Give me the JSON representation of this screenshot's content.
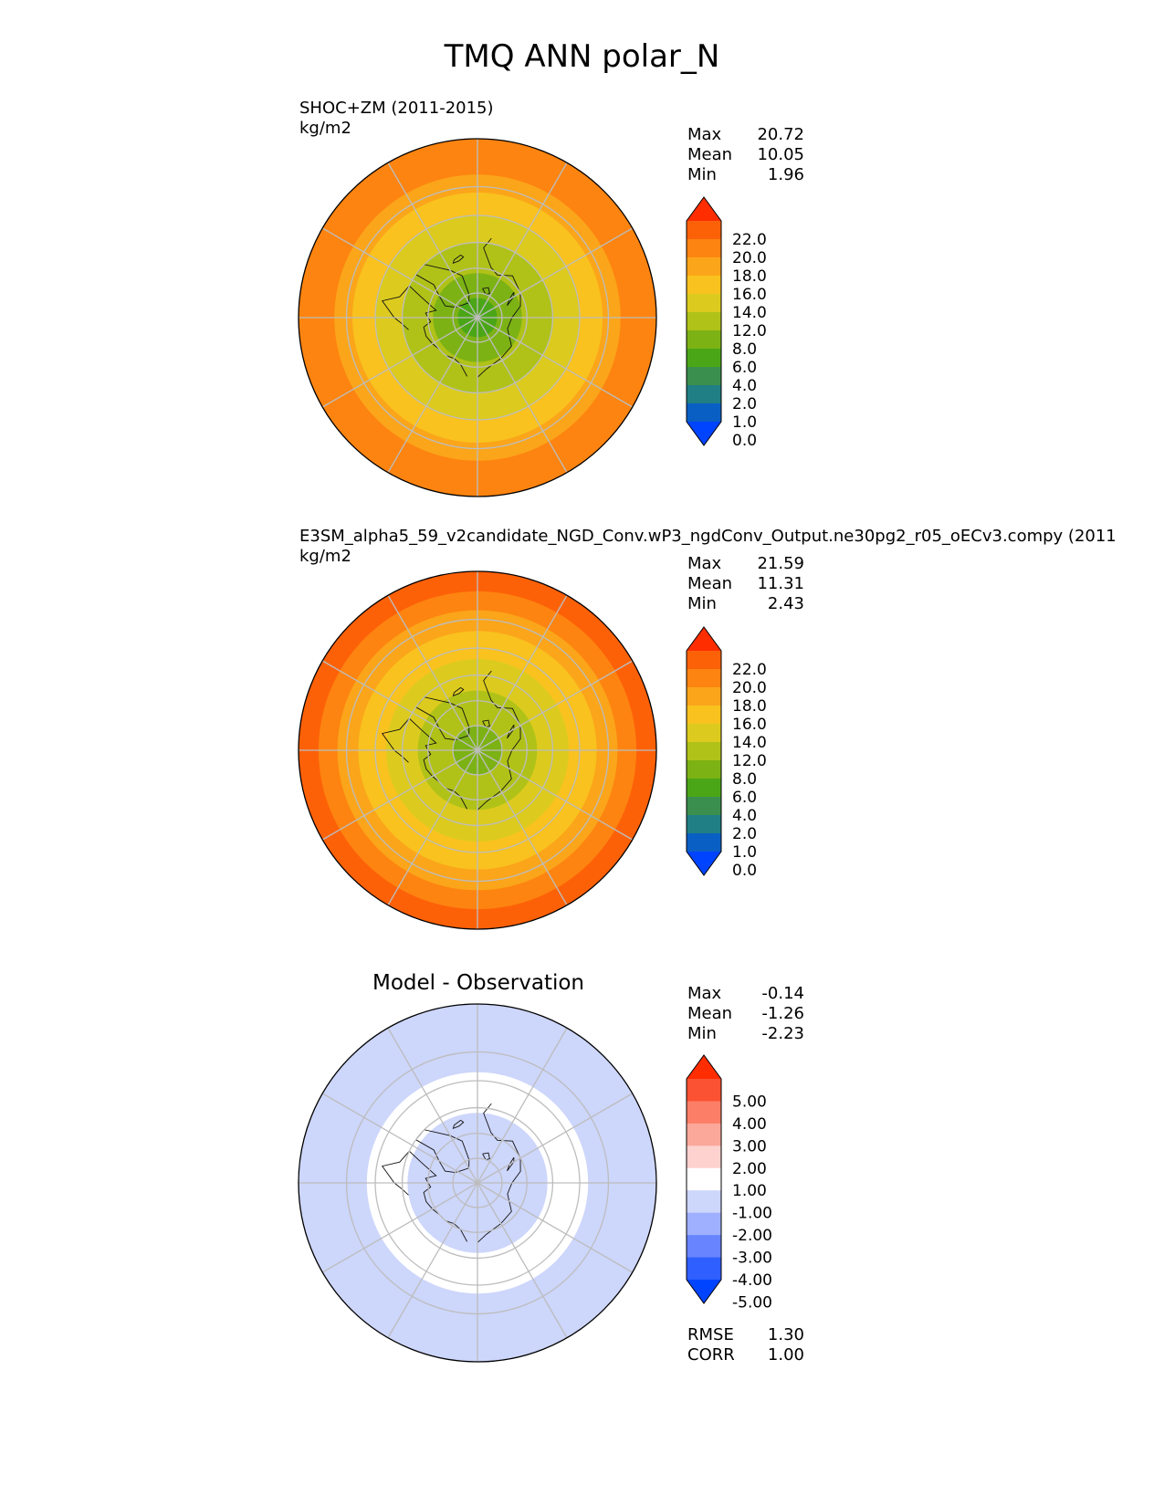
{
  "title": "TMQ ANN polar_N",
  "panels": [
    {
      "id": "test",
      "title": "SHOC+ZM (2011-2015)",
      "units": "kg/m2",
      "stats": [
        {
          "label": "Max",
          "value": "20.72"
        },
        {
          "label": "Mean",
          "value": "10.05"
        },
        {
          "label": "Min",
          "value": "1.96"
        }
      ]
    },
    {
      "id": "reference",
      "title": "E3SM_alpha5_59_v2candidate_NGD_Conv.wP3_ngdConv_Output.ne30pg2_r05_oECv3.compy (2011",
      "units": "kg/m2",
      "stats": [
        {
          "label": "Max",
          "value": "21.59"
        },
        {
          "label": "Mean",
          "value": "11.31"
        },
        {
          "label": "Min",
          "value": "2.43"
        }
      ]
    },
    {
      "id": "difference",
      "title": "Model - Observation",
      "units": "",
      "stats": [
        {
          "label": "Max",
          "value": "-0.14"
        },
        {
          "label": "Mean",
          "value": "-1.26"
        },
        {
          "label": "Min",
          "value": "-2.23"
        }
      ],
      "metrics": [
        {
          "label": "RMSE",
          "value": "1.30"
        },
        {
          "label": "CORR",
          "value": "1.00"
        }
      ]
    }
  ],
  "chart_data": [
    {
      "type": "heatmap",
      "projection": "north polar stereographic",
      "title": "SHOC+ZM (2011-2015)",
      "units": "kg/m2",
      "stats": {
        "max": 20.72,
        "mean": 10.05,
        "min": 1.96
      },
      "colorbar": {
        "tick_labels": [
          "22.0",
          "20.0",
          "18.0",
          "16.0",
          "14.0",
          "12.0",
          "8.0",
          "6.0",
          "4.0",
          "2.0",
          "1.0",
          "0.0"
        ],
        "levels": [
          0,
          1,
          2,
          4,
          6,
          8,
          12,
          14,
          16,
          18,
          20,
          22
        ],
        "colors": [
          "#0044ff",
          "#0a5fc4",
          "#1f7f84",
          "#3a8f4e",
          "#4aa616",
          "#7cb214",
          "#b0c218",
          "#dccb1e",
          "#f9c21e",
          "#fba51a",
          "#fd8410",
          "#fd6108",
          "#ff2d00"
        ],
        "extend": "both"
      },
      "field_zones": [
        {
          "lat_min": 82,
          "value": 5.5
        },
        {
          "lat_min": 72,
          "value": 7
        },
        {
          "lat_min": 60,
          "value": 9
        },
        {
          "lat_min": 50,
          "value": 12.5
        },
        {
          "lat_min": 42,
          "value": 14.5
        },
        {
          "lat_min": 36,
          "value": 16.5
        },
        {
          "lat_min": 30,
          "value": 18.5
        }
      ]
    },
    {
      "type": "heatmap",
      "projection": "north polar stereographic",
      "title": "E3SM_alpha5_59_v2candidate_NGD_Conv.wP3_ngdConv_Output.ne30pg2_r05_oECv3.compy (2011",
      "units": "kg/m2",
      "stats": {
        "max": 21.59,
        "mean": 11.31,
        "min": 2.43
      },
      "colorbar": {
        "tick_labels": [
          "22.0",
          "20.0",
          "18.0",
          "16.0",
          "14.0",
          "12.0",
          "8.0",
          "6.0",
          "4.0",
          "2.0",
          "1.0",
          "0.0"
        ],
        "levels": [
          0,
          1,
          2,
          4,
          6,
          8,
          12,
          14,
          16,
          18,
          20,
          22
        ],
        "colors": [
          "#0044ff",
          "#0a5fc4",
          "#1f7f84",
          "#3a8f4e",
          "#4aa616",
          "#7cb214",
          "#b0c218",
          "#dccb1e",
          "#f9c21e",
          "#fba51a",
          "#fd8410",
          "#fd6108",
          "#ff2d00"
        ],
        "extend": "both"
      },
      "field_zones": [
        {
          "lat_min": 80,
          "value": 7
        },
        {
          "lat_min": 66,
          "value": 9
        },
        {
          "lat_min": 54,
          "value": 12.5
        },
        {
          "lat_min": 44,
          "value": 14.5
        },
        {
          "lat_min": 37,
          "value": 16.5
        },
        {
          "lat_min": 31,
          "value": 18.5
        },
        {
          "lat_min": 28,
          "value": 20.5
        }
      ]
    },
    {
      "type": "heatmap",
      "projection": "north polar stereographic",
      "title": "Model - Observation",
      "units": "",
      "stats": {
        "max": -0.14,
        "mean": -1.26,
        "min": -2.23
      },
      "metrics": {
        "rmse": 1.3,
        "corr": 1.0
      },
      "colorbar": {
        "tick_labels": [
          "5.00",
          "4.00",
          "3.00",
          "2.00",
          "1.00",
          "-1.00",
          "-2.00",
          "-3.00",
          "-4.00",
          "-5.00"
        ],
        "levels": [
          -5,
          -4,
          -3,
          -2,
          -1,
          1,
          2,
          3,
          4,
          5
        ],
        "colors": [
          "#0044ff",
          "#2f5fff",
          "#6884ff",
          "#9eb0ff",
          "#cdd6fb",
          "#ffffff",
          "#fdd2cf",
          "#fba89a",
          "#fd7e66",
          "#fb5233",
          "#ff2d00"
        ],
        "extend": "both"
      },
      "field_zones": [
        {
          "lat_min": 62,
          "value": -1.3
        },
        {
          "lat_min": 47,
          "value": -0.5
        },
        {
          "lat_min": 30,
          "value": -1.3
        }
      ]
    }
  ]
}
